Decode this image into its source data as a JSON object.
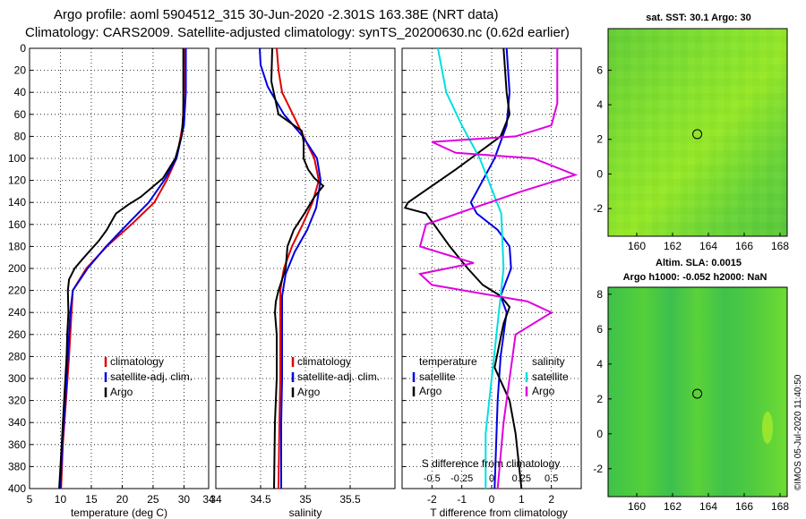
{
  "title_line1": "Argo profile: aoml 5904512_315 30-Jun-2020 -2.301S 163.38E (NRT data)",
  "title_line2": "Climatology: CARS2009. Satellite-adjusted climatology: synTS_20200630.nc (0.62d earlier)",
  "timestamp": "©IMOS 05-Jul-2020 11:40:50",
  "colors": {
    "climatology": "#e00000",
    "satellite": "#0000e0",
    "argo": "#000000",
    "sat_salinity": "#00e0e0",
    "argo_salinity": "#e000e0"
  },
  "depth_ticks": [
    "0",
    "20",
    "40",
    "60",
    "80",
    "100",
    "120",
    "140",
    "160",
    "180",
    "200",
    "220",
    "240",
    "260",
    "280",
    "300",
    "320",
    "340",
    "360",
    "380",
    "400"
  ],
  "chart_data": [
    {
      "type": "line",
      "panel": "temperature",
      "xlabel": "temperature (deg C)",
      "ylabel": "depth",
      "xlim": [
        5,
        34
      ],
      "ylim": [
        400,
        0
      ],
      "xticks": [
        "5",
        "10",
        "15",
        "20",
        "25",
        "30",
        "34"
      ],
      "legend": [
        "climatology",
        "satellite-adj. clim.",
        "Argo"
      ],
      "series": [
        {
          "name": "climatology",
          "color": "red",
          "points": [
            [
              30,
              0
            ],
            [
              30,
              40
            ],
            [
              29.8,
              70
            ],
            [
              28.8,
              100
            ],
            [
              27.2,
              120
            ],
            [
              25.2,
              140
            ],
            [
              21.5,
              160
            ],
            [
              17.5,
              180
            ],
            [
              14.2,
              200
            ],
            [
              12,
              220
            ],
            [
              11.8,
              240
            ],
            [
              11.4,
              280
            ],
            [
              10.9,
              320
            ],
            [
              10.4,
              360
            ],
            [
              10.1,
              400
            ]
          ]
        },
        {
          "name": "satellite-adj. clim.",
          "color": "blue",
          "points": [
            [
              30.3,
              0
            ],
            [
              30.3,
              40
            ],
            [
              30,
              70
            ],
            [
              28.8,
              100
            ],
            [
              26.8,
              120
            ],
            [
              24.3,
              140
            ],
            [
              20.8,
              160
            ],
            [
              17.4,
              180
            ],
            [
              14.4,
              200
            ],
            [
              12,
              220
            ],
            [
              11.6,
              240
            ],
            [
              11.2,
              280
            ],
            [
              10.8,
              320
            ],
            [
              10.3,
              360
            ],
            [
              10,
              400
            ]
          ]
        },
        {
          "name": "Argo",
          "color": "black",
          "points": [
            [
              29.9,
              0
            ],
            [
              29.9,
              40
            ],
            [
              29.9,
              60
            ],
            [
              29.6,
              80
            ],
            [
              28.6,
              100
            ],
            [
              26.6,
              118
            ],
            [
              23,
              135
            ],
            [
              21,
              142
            ],
            [
              19,
              150
            ],
            [
              17.5,
              165
            ],
            [
              16.2,
              175
            ],
            [
              14.6,
              185
            ],
            [
              13.5,
              192
            ],
            [
              12.3,
              200
            ],
            [
              11.4,
              210
            ],
            [
              11.2,
              220
            ],
            [
              11.3,
              240
            ],
            [
              11.1,
              260
            ],
            [
              11,
              280
            ],
            [
              10.6,
              320
            ],
            [
              10.2,
              360
            ],
            [
              9.8,
              400
            ]
          ]
        }
      ]
    },
    {
      "type": "line",
      "panel": "salinity",
      "xlabel": "salinity",
      "xlim": [
        34,
        36
      ],
      "ylim": [
        400,
        0
      ],
      "xticks": [
        "34",
        "34.5",
        "35",
        "35.5"
      ],
      "legend": [
        "climatology",
        "satellite-adj. clim.",
        "Argo"
      ],
      "series": [
        {
          "name": "climatology",
          "color": "red",
          "points": [
            [
              34.68,
              0
            ],
            [
              34.7,
              20
            ],
            [
              34.74,
              40
            ],
            [
              34.86,
              60
            ],
            [
              34.98,
              80
            ],
            [
              35.1,
              100
            ],
            [
              35.15,
              120
            ],
            [
              35.08,
              140
            ],
            [
              34.97,
              160
            ],
            [
              34.85,
              180
            ],
            [
              34.76,
              200
            ],
            [
              34.72,
              220
            ],
            [
              34.72,
              260
            ],
            [
              34.72,
              300
            ],
            [
              34.71,
              340
            ],
            [
              34.7,
              400
            ]
          ]
        },
        {
          "name": "satellite-adj. clim.",
          "color": "blue",
          "points": [
            [
              34.49,
              0
            ],
            [
              34.5,
              15
            ],
            [
              34.58,
              35
            ],
            [
              34.76,
              60
            ],
            [
              34.97,
              80
            ],
            [
              35.13,
              100
            ],
            [
              35.17,
              120
            ],
            [
              35.12,
              145
            ],
            [
              35.02,
              165
            ],
            [
              34.88,
              185
            ],
            [
              34.78,
              205
            ],
            [
              34.74,
              225
            ],
            [
              34.74,
              260
            ],
            [
              34.74,
              300
            ],
            [
              34.73,
              340
            ],
            [
              34.73,
              400
            ]
          ]
        },
        {
          "name": "Argo",
          "color": "black",
          "points": [
            [
              34.63,
              0
            ],
            [
              34.62,
              30
            ],
            [
              34.7,
              60
            ],
            [
              34.96,
              75
            ],
            [
              34.98,
              85
            ],
            [
              34.98,
              100
            ],
            [
              35.03,
              110
            ],
            [
              35.1,
              118
            ],
            [
              35.2,
              125
            ],
            [
              35.1,
              135
            ],
            [
              34.99,
              150
            ],
            [
              34.87,
              165
            ],
            [
              34.8,
              180
            ],
            [
              34.78,
              200
            ],
            [
              34.7,
              220
            ],
            [
              34.67,
              230
            ],
            [
              34.66,
              240
            ],
            [
              34.68,
              260
            ],
            [
              34.68,
              300
            ],
            [
              34.66,
              340
            ],
            [
              34.65,
              400
            ]
          ]
        }
      ]
    },
    {
      "type": "line",
      "panel": "difference",
      "xlabel": "T difference from climatology",
      "top_label": "S difference from climatology",
      "xlim": [
        -3,
        3
      ],
      "ylim": [
        400,
        0
      ],
      "xticks": [
        "-2",
        "-1",
        "0",
        "1",
        "2"
      ],
      "top_xticks": [
        "-0.5",
        "-0.25",
        "0",
        "0.25",
        "0.5"
      ],
      "legend": {
        "temperature_header": "temperature",
        "salinity_header": "salinity",
        "items_left": [
          "satellite",
          "Argo"
        ],
        "items_right": [
          "satellite",
          "Argo"
        ]
      },
      "series": [
        {
          "name": "T satellite",
          "color": "blue",
          "points": [
            [
              0.5,
              0
            ],
            [
              0.6,
              40
            ],
            [
              0.5,
              70
            ],
            [
              0.1,
              100
            ],
            [
              -0.4,
              125
            ],
            [
              -0.7,
              140
            ],
            [
              -0.5,
              150
            ],
            [
              0.2,
              165
            ],
            [
              0.6,
              180
            ],
            [
              0.65,
              200
            ],
            [
              0.3,
              225
            ],
            [
              0.5,
              240
            ],
            [
              0.3,
              280
            ],
            [
              0.2,
              320
            ],
            [
              0.15,
              360
            ],
            [
              0.1,
              400
            ]
          ]
        },
        {
          "name": "T Argo",
          "color": "black",
          "points": [
            [
              0.4,
              0
            ],
            [
              0.5,
              40
            ],
            [
              0.6,
              60
            ],
            [
              0.3,
              80
            ],
            [
              -0.2,
              90
            ],
            [
              -0.7,
              100
            ],
            [
              -1.2,
              110
            ],
            [
              -2.0,
              125
            ],
            [
              -2.8,
              140
            ],
            [
              -2.9,
              145
            ],
            [
              -2.2,
              150
            ],
            [
              -1.8,
              165
            ],
            [
              -1.4,
              180
            ],
            [
              -0.8,
              200
            ],
            [
              -0.3,
              215
            ],
            [
              0.3,
              225
            ],
            [
              0.6,
              235
            ],
            [
              0.4,
              250
            ],
            [
              0.1,
              290
            ],
            [
              0.6,
              320
            ],
            [
              0.8,
              350
            ],
            [
              1.0,
              400
            ]
          ]
        },
        {
          "name": "S satellite",
          "color": "cyan",
          "points": [
            [
              -0.45,
              0
            ],
            [
              -0.38,
              40
            ],
            [
              -0.25,
              70
            ],
            [
              -0.1,
              100
            ],
            [
              0.08,
              150
            ],
            [
              0.1,
              200
            ],
            [
              0.05,
              250
            ],
            [
              0.0,
              300
            ],
            [
              -0.05,
              350
            ],
            [
              -0.05,
              400
            ]
          ]
        },
        {
          "name": "S Argo",
          "color": "magenta",
          "points": [
            [
              0.55,
              0
            ],
            [
              0.55,
              50
            ],
            [
              0.5,
              70
            ],
            [
              0.2,
              80
            ],
            [
              -0.5,
              85
            ],
            [
              -0.3,
              95
            ],
            [
              0.35,
              100
            ],
            [
              0.7,
              115
            ],
            [
              0.25,
              130
            ],
            [
              -0.55,
              160
            ],
            [
              -0.6,
              180
            ],
            [
              -0.15,
              195
            ],
            [
              -0.6,
              205
            ],
            [
              -0.5,
              215
            ],
            [
              0.3,
              230
            ],
            [
              0.5,
              240
            ],
            [
              0.2,
              260
            ],
            [
              0.15,
              300
            ],
            [
              0.1,
              340
            ],
            [
              0.05,
              400
            ]
          ]
        }
      ]
    },
    {
      "type": "heatmap",
      "panel": "sst_map",
      "title": "sat. SST: 30.1 Argo: 30",
      "xlim": [
        158.4,
        168.4
      ],
      "ylim": [
        -3.6,
        8.4
      ],
      "xticks": [
        "160",
        "162",
        "164",
        "166",
        "168"
      ],
      "yticks": [
        "6",
        "4",
        "2",
        "0",
        "-2"
      ],
      "marker": {
        "lon": 163.38,
        "lat": 2.3
      }
    },
    {
      "type": "heatmap",
      "panel": "sla_map",
      "title_line1": "Altim. SLA: 0.0015",
      "title_line2": "Argo h1000: -0.052 h2000: NaN",
      "xlim": [
        158.4,
        168.4
      ],
      "ylim": [
        -3.6,
        8.4
      ],
      "xticks": [
        "160",
        "162",
        "164",
        "166",
        "168"
      ],
      "yticks": [
        "8",
        "6",
        "4",
        "2",
        "0",
        "-2"
      ],
      "marker": {
        "lon": 163.38,
        "lat": 2.3
      }
    }
  ]
}
